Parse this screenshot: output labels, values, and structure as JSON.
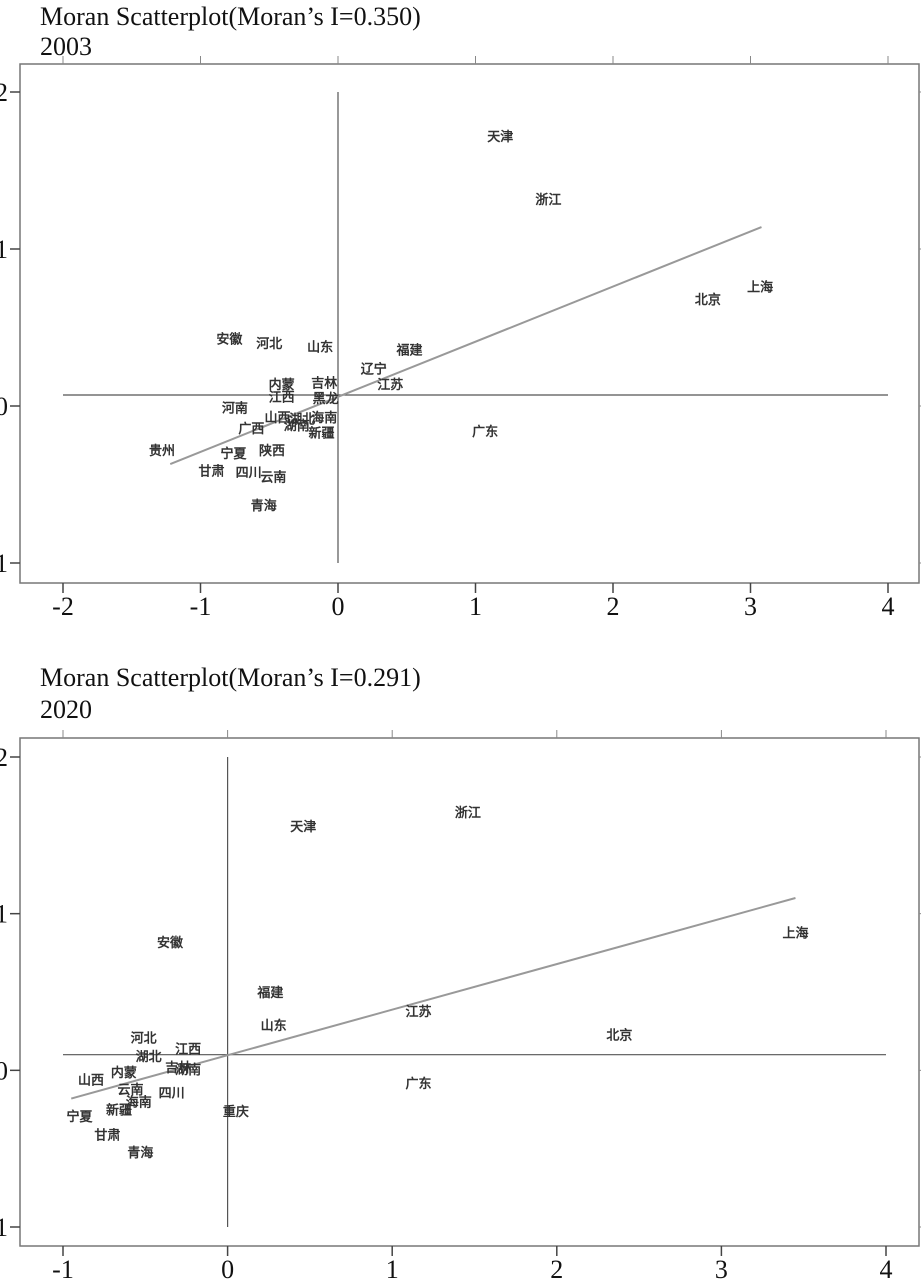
{
  "chart_data": [
    {
      "type": "scatter",
      "title": "Moran Scatterplot(Moran’s I=0.350)",
      "subtitle": "2003",
      "xlim": [
        -2,
        4
      ],
      "ylim": [
        -1,
        2
      ],
      "xticks": [
        "-2",
        "-1",
        "0",
        "1",
        "2",
        "3",
        "4"
      ],
      "yticks": [
        "-1",
        "0",
        "1",
        "2"
      ],
      "fit_line": {
        "x": [
          -1.22,
          3.08
        ],
        "y": [
          -0.37,
          1.14
        ]
      },
      "mean_lines": {
        "x": 0,
        "y": 0.07
      },
      "points": [
        {
          "label": "天津",
          "x": 1.18,
          "y": 1.72
        },
        {
          "label": "浙江",
          "x": 1.53,
          "y": 1.32
        },
        {
          "label": "上海",
          "x": 3.07,
          "y": 0.76
        },
        {
          "label": "北京",
          "x": 2.69,
          "y": 0.68
        },
        {
          "label": "安徽",
          "x": -0.79,
          "y": 0.43
        },
        {
          "label": "河北",
          "x": -0.5,
          "y": 0.4
        },
        {
          "label": "山东",
          "x": -0.13,
          "y": 0.38
        },
        {
          "label": "福建",
          "x": 0.52,
          "y": 0.36
        },
        {
          "label": "辽宁",
          "x": 0.26,
          "y": 0.24
        },
        {
          "label": "江苏",
          "x": 0.38,
          "y": 0.14
        },
        {
          "label": "内蒙",
          "x": -0.41,
          "y": 0.14
        },
        {
          "label": "吉林",
          "x": -0.1,
          "y": 0.15
        },
        {
          "label": "江西",
          "x": -0.41,
          "y": 0.06
        },
        {
          "label": "黑龙",
          "x": -0.09,
          "y": 0.05
        },
        {
          "label": "河南",
          "x": -0.75,
          "y": -0.01
        },
        {
          "label": "山西",
          "x": -0.44,
          "y": -0.07
        },
        {
          "label": "湖北",
          "x": -0.26,
          "y": -0.08
        },
        {
          "label": "海南",
          "x": -0.1,
          "y": -0.07
        },
        {
          "label": "广西",
          "x": -0.63,
          "y": -0.14
        },
        {
          "label": "湖南",
          "x": -0.3,
          "y": -0.12
        },
        {
          "label": "新疆",
          "x": -0.12,
          "y": -0.17
        },
        {
          "label": "广东",
          "x": 1.07,
          "y": -0.16
        },
        {
          "label": "贵州",
          "x": -1.28,
          "y": -0.28
        },
        {
          "label": "宁夏",
          "x": -0.76,
          "y": -0.3
        },
        {
          "label": "陕西",
          "x": -0.48,
          "y": -0.28
        },
        {
          "label": "甘肃",
          "x": -0.92,
          "y": -0.41
        },
        {
          "label": "四川",
          "x": -0.65,
          "y": -0.42
        },
        {
          "label": "云南",
          "x": -0.47,
          "y": -0.45
        },
        {
          "label": "青海",
          "x": -0.54,
          "y": -0.63
        }
      ]
    },
    {
      "type": "scatter",
      "title": "Moran Scatterplot(Moran’s I=0.291)",
      "subtitle": "2020",
      "xlim": [
        -1,
        4
      ],
      "ylim": [
        -1,
        2
      ],
      "xticks": [
        "-1",
        "0",
        "1",
        "2",
        "3",
        "4"
      ],
      "yticks": [
        "-1",
        "0",
        "1",
        "2"
      ],
      "fit_line": {
        "x": [
          -0.95,
          3.45
        ],
        "y": [
          -0.18,
          1.1
        ]
      },
      "mean_lines": {
        "x": 0,
        "y": 0.1
      },
      "points": [
        {
          "label": "浙江",
          "x": 1.46,
          "y": 1.65
        },
        {
          "label": "天津",
          "x": 0.46,
          "y": 1.56
        },
        {
          "label": "上海",
          "x": 3.45,
          "y": 0.88
        },
        {
          "label": "安徽",
          "x": -0.35,
          "y": 0.82
        },
        {
          "label": "福建",
          "x": 0.26,
          "y": 0.5
        },
        {
          "label": "江苏",
          "x": 1.16,
          "y": 0.38
        },
        {
          "label": "山东",
          "x": 0.28,
          "y": 0.29
        },
        {
          "label": "北京",
          "x": 2.38,
          "y": 0.23
        },
        {
          "label": "河北",
          "x": -0.51,
          "y": 0.21
        },
        {
          "label": "江西",
          "x": -0.24,
          "y": 0.14
        },
        {
          "label": "湖北",
          "x": -0.48,
          "y": 0.09
        },
        {
          "label": "吉林",
          "x": -0.3,
          "y": 0.02
        },
        {
          "label": "湖南",
          "x": -0.24,
          "y": 0.01
        },
        {
          "label": "内蒙",
          "x": -0.63,
          "y": -0.01
        },
        {
          "label": "山西",
          "x": -0.83,
          "y": -0.06
        },
        {
          "label": "广东",
          "x": 1.16,
          "y": -0.08
        },
        {
          "label": "云南",
          "x": -0.59,
          "y": -0.12
        },
        {
          "label": "四川",
          "x": -0.34,
          "y": -0.14
        },
        {
          "label": "海南",
          "x": -0.54,
          "y": -0.2
        },
        {
          "label": "宁夏",
          "x": -0.9,
          "y": -0.29
        },
        {
          "label": "新疆",
          "x": -0.66,
          "y": -0.25
        },
        {
          "label": "重庆",
          "x": 0.05,
          "y": -0.26
        },
        {
          "label": "甘肃",
          "x": -0.73,
          "y": -0.41
        },
        {
          "label": "青海",
          "x": -0.53,
          "y": -0.52
        }
      ]
    }
  ]
}
